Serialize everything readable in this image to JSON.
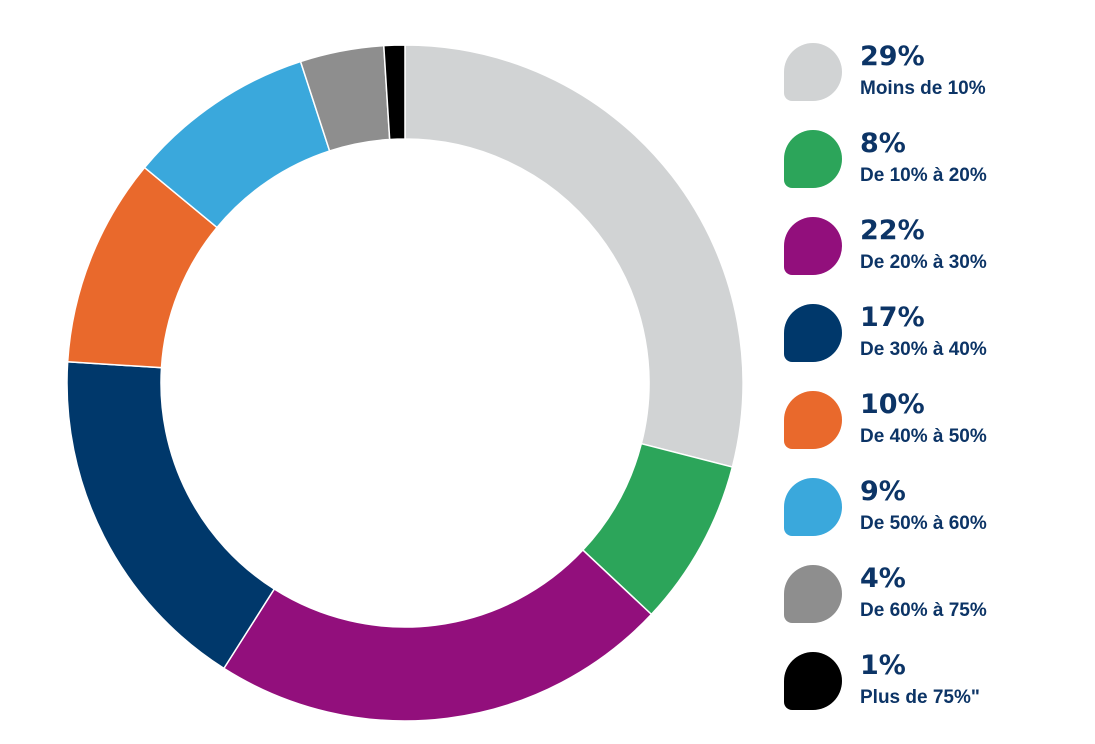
{
  "chart_data": {
    "type": "pie",
    "variant": "donut",
    "title": "",
    "legend_position": "right",
    "series": [
      {
        "label": "Moins de 10%",
        "value": 29,
        "value_label": "29%",
        "color": "#d1d3d4"
      },
      {
        "label": "De 10% à 20%",
        "value": 8,
        "value_label": "8%",
        "color": "#2ca55a"
      },
      {
        "label": "De 20% à 30%",
        "value": 22,
        "value_label": "22%",
        "color": "#920f7c"
      },
      {
        "label": "De 30% à 40%",
        "value": 17,
        "value_label": "17%",
        "color": "#00386b"
      },
      {
        "label": "De 40% à 50%",
        "value": 10,
        "value_label": "10%",
        "color": "#e9692c"
      },
      {
        "label": "De 50% à 60%",
        "value": 9,
        "value_label": "9%",
        "color": "#3aa8dc"
      },
      {
        "label": "De 60% à 75%",
        "value": 4,
        "value_label": "4%",
        "color": "#8e8e8e"
      },
      {
        "label": "Plus de 75%\"",
        "value": 1,
        "value_label": "1%",
        "color": "#000000"
      }
    ]
  },
  "colors": {
    "text": "#0c3466",
    "background": "#ffffff"
  }
}
